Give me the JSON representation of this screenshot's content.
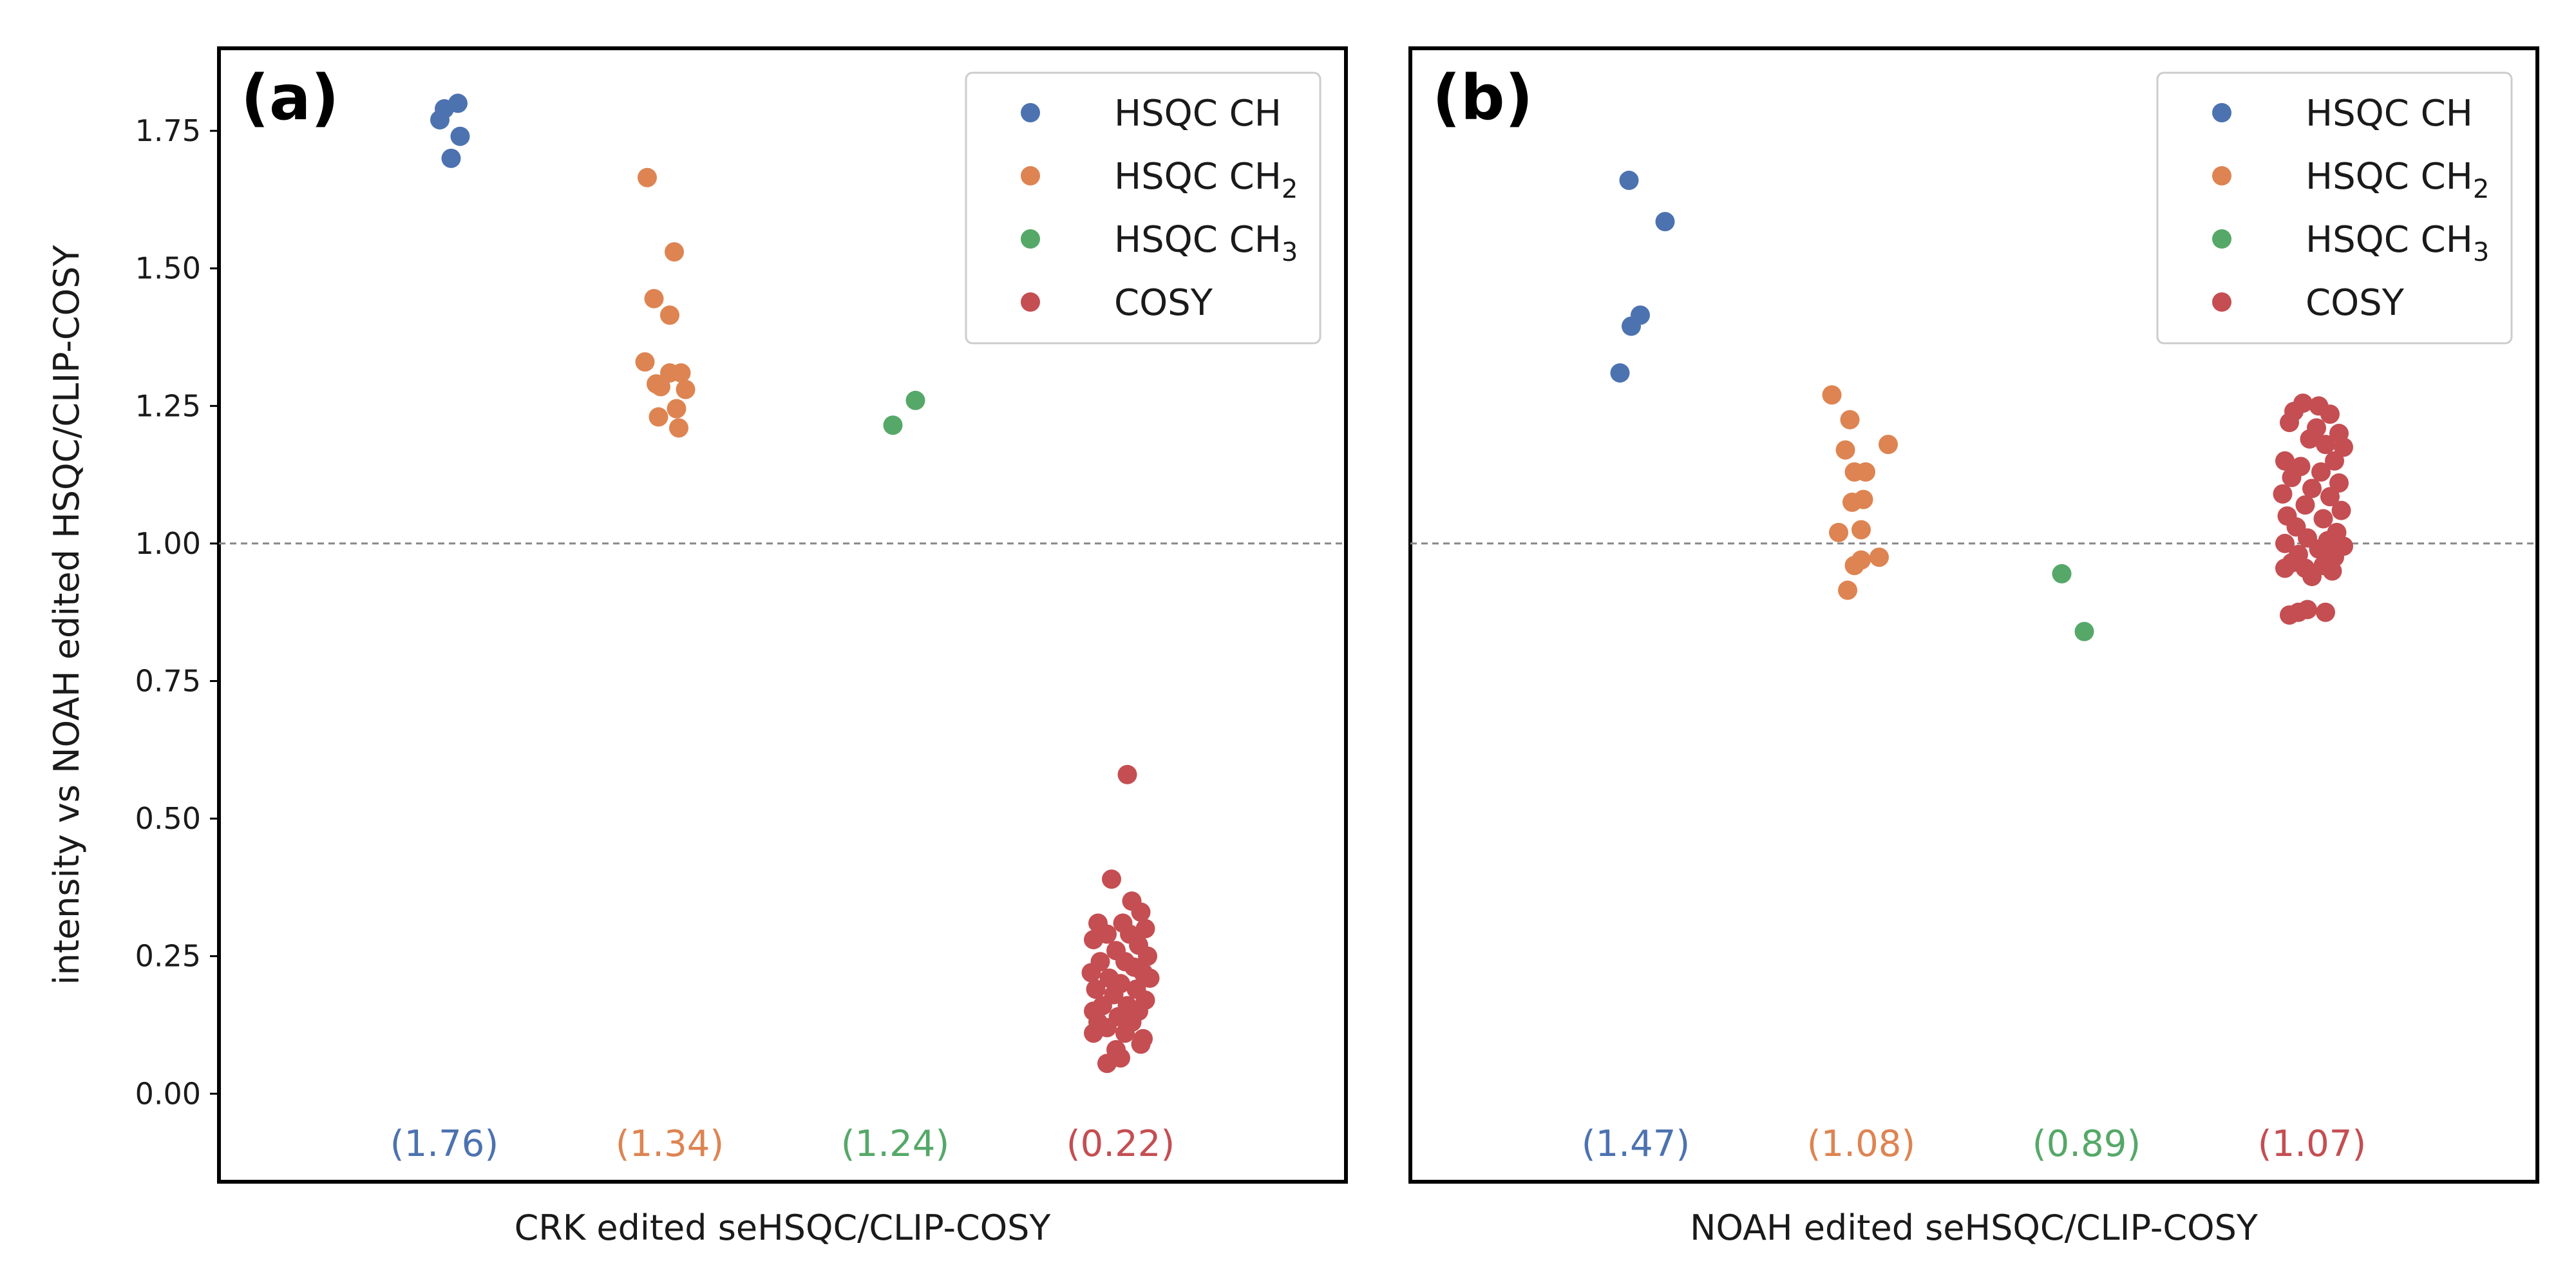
{
  "ylabel": "intensity vs NOAH edited HSQC/CLIP-COSY",
  "chart_data": [
    {
      "type": "scatter",
      "panel_label": "(a)",
      "xlabel": "CRK edited seHSQC/CLIP-COSY",
      "ylim": [
        -0.16,
        1.9
      ],
      "yticks": [
        "0.00",
        "0.25",
        "0.50",
        "0.75",
        "1.00",
        "1.25",
        "1.50",
        "1.75"
      ],
      "reference_line": 1.0,
      "legend_position": "upper right",
      "series": [
        {
          "name_main": "HSQC CH",
          "name_sub": "",
          "color": "#4c72b0",
          "mean_label": "(1.76)",
          "points": [
            [
              -0.02,
              1.77
            ],
            [
              0.0,
              1.79
            ],
            [
              0.06,
              1.8
            ],
            [
              0.07,
              1.74
            ],
            [
              0.03,
              1.7
            ]
          ]
        },
        {
          "name_main": "HSQC CH",
          "name_sub": "2",
          "color": "#dd8452",
          "mean_label": "(1.34)",
          "points": [
            [
              -0.1,
              1.665
            ],
            [
              0.02,
              1.53
            ],
            [
              -0.07,
              1.445
            ],
            [
              0.0,
              1.415
            ],
            [
              -0.11,
              1.33
            ],
            [
              0.0,
              1.31
            ],
            [
              0.05,
              1.31
            ],
            [
              -0.06,
              1.29
            ],
            [
              -0.04,
              1.285
            ],
            [
              0.07,
              1.28
            ],
            [
              0.03,
              1.245
            ],
            [
              -0.05,
              1.23
            ],
            [
              0.04,
              1.21
            ]
          ]
        },
        {
          "name_main": "HSQC CH",
          "name_sub": "3",
          "color": "#55a868",
          "mean_label": "(1.24)",
          "points": [
            [
              -0.01,
              1.215
            ],
            [
              0.09,
              1.26
            ]
          ]
        },
        {
          "name_main": "COSY",
          "name_sub": "",
          "color": "#c44e52",
          "mean_label": "(0.22)",
          "points": [
            [
              0.03,
              0.58
            ],
            [
              -0.04,
              0.39
            ],
            [
              0.05,
              0.35
            ],
            [
              0.09,
              0.33
            ],
            [
              -0.1,
              0.31
            ],
            [
              0.01,
              0.31
            ],
            [
              0.11,
              0.3
            ],
            [
              -0.06,
              0.29
            ],
            [
              0.04,
              0.29
            ],
            [
              -0.12,
              0.28
            ],
            [
              0.08,
              0.27
            ],
            [
              -0.02,
              0.26
            ],
            [
              0.12,
              0.25
            ],
            [
              -0.09,
              0.24
            ],
            [
              0.02,
              0.24
            ],
            [
              0.06,
              0.23
            ],
            [
              -0.13,
              0.22
            ],
            [
              0.1,
              0.22
            ],
            [
              -0.05,
              0.21
            ],
            [
              0.13,
              0.21
            ],
            [
              0.0,
              0.2
            ],
            [
              -0.11,
              0.19
            ],
            [
              0.07,
              0.19
            ],
            [
              -0.03,
              0.18
            ],
            [
              0.11,
              0.17
            ],
            [
              -0.08,
              0.16
            ],
            [
              0.03,
              0.16
            ],
            [
              -0.12,
              0.15
            ],
            [
              0.08,
              0.15
            ],
            [
              -0.01,
              0.14
            ],
            [
              -0.1,
              0.13
            ],
            [
              0.05,
              0.13
            ],
            [
              -0.06,
              0.12
            ],
            [
              0.02,
              0.11
            ],
            [
              -0.12,
              0.11
            ],
            [
              0.1,
              0.1
            ],
            [
              0.09,
              0.09
            ],
            [
              -0.02,
              0.08
            ],
            [
              0.0,
              0.065
            ],
            [
              -0.06,
              0.055
            ]
          ]
        }
      ]
    },
    {
      "type": "scatter",
      "panel_label": "(b)",
      "xlabel": "NOAH edited seHSQC/CLIP-COSY",
      "ylim": [
        -0.16,
        1.9
      ],
      "reference_line": 1.0,
      "legend_position": "upper right",
      "series": [
        {
          "name_main": "HSQC CH",
          "name_sub": "",
          "color": "#4c72b0",
          "mean_label": "(1.47)",
          "points": [
            [
              -0.03,
              1.66
            ],
            [
              0.13,
              1.585
            ],
            [
              0.02,
              1.415
            ],
            [
              -0.02,
              1.395
            ],
            [
              -0.07,
              1.31
            ]
          ]
        },
        {
          "name_main": "HSQC CH",
          "name_sub": "2",
          "color": "#dd8452",
          "mean_label": "(1.08)",
          "points": [
            [
              -0.13,
              1.27
            ],
            [
              -0.05,
              1.225
            ],
            [
              0.12,
              1.18
            ],
            [
              -0.07,
              1.17
            ],
            [
              -0.03,
              1.13
            ],
            [
              0.02,
              1.13
            ],
            [
              0.01,
              1.08
            ],
            [
              -0.04,
              1.075
            ],
            [
              0.0,
              1.025
            ],
            [
              -0.1,
              1.02
            ],
            [
              0.08,
              0.975
            ],
            [
              0.0,
              0.97
            ],
            [
              -0.03,
              0.96
            ],
            [
              -0.06,
              0.915
            ]
          ]
        },
        {
          "name_main": "HSQC CH",
          "name_sub": "3",
          "color": "#55a868",
          "mean_label": "(0.89)",
          "points": [
            [
              -0.11,
              0.945
            ],
            [
              -0.01,
              0.84
            ]
          ]
        },
        {
          "name_main": "COSY",
          "name_sub": "",
          "color": "#c44e52",
          "mean_label": "(1.07)",
          "points": [
            [
              -0.04,
              1.255
            ],
            [
              0.03,
              1.25
            ],
            [
              -0.08,
              1.24
            ],
            [
              0.08,
              1.235
            ],
            [
              -0.1,
              1.22
            ],
            [
              0.02,
              1.21
            ],
            [
              0.12,
              1.2
            ],
            [
              -0.01,
              1.19
            ],
            [
              0.06,
              1.18
            ],
            [
              0.14,
              1.175
            ],
            [
              -0.12,
              1.15
            ],
            [
              0.1,
              1.15
            ],
            [
              -0.05,
              1.14
            ],
            [
              0.04,
              1.13
            ],
            [
              -0.09,
              1.12
            ],
            [
              0.12,
              1.11
            ],
            [
              0.0,
              1.1
            ],
            [
              -0.13,
              1.09
            ],
            [
              0.08,
              1.085
            ],
            [
              -0.03,
              1.07
            ],
            [
              0.13,
              1.06
            ],
            [
              -0.11,
              1.05
            ],
            [
              0.05,
              1.045
            ],
            [
              -0.07,
              1.03
            ],
            [
              0.11,
              1.02
            ],
            [
              -0.02,
              1.01
            ],
            [
              0.07,
              1.005
            ],
            [
              -0.12,
              1.0
            ],
            [
              0.14,
              0.995
            ],
            [
              0.03,
              0.99
            ],
            [
              -0.06,
              0.98
            ],
            [
              0.1,
              0.975
            ],
            [
              -0.09,
              0.965
            ],
            [
              0.05,
              0.96
            ],
            [
              -0.03,
              0.955
            ],
            [
              -0.12,
              0.955
            ],
            [
              0.09,
              0.95
            ],
            [
              0.0,
              0.94
            ],
            [
              -0.1,
              0.87
            ],
            [
              -0.06,
              0.875
            ],
            [
              -0.02,
              0.88
            ],
            [
              0.06,
              0.875
            ]
          ]
        }
      ]
    }
  ]
}
